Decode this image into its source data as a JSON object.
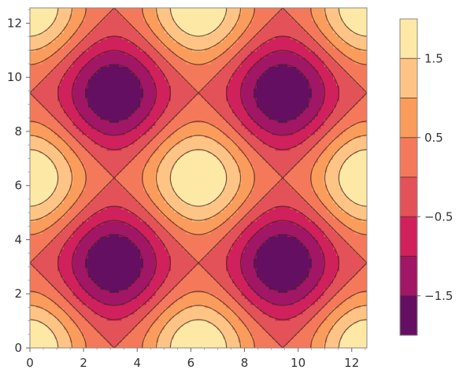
{
  "chart_data": {
    "type": "contour",
    "function": "cos(x) + cos(y)",
    "xlim": [
      0,
      12.566
    ],
    "ylim": [
      0,
      12.566
    ],
    "xticks": [
      0,
      2,
      4,
      6,
      8,
      10,
      12
    ],
    "yticks": [
      0,
      2,
      4,
      6,
      8,
      10,
      12
    ],
    "contour_levels": [
      -1.5,
      -1.0,
      -0.5,
      0.0,
      0.5,
      1.0,
      1.5
    ],
    "color_bands": [
      {
        "range": [
          -2.0,
          -1.5
        ],
        "color": "#650f63"
      },
      {
        "range": [
          -1.5,
          -1.0
        ],
        "color": "#a11665"
      },
      {
        "range": [
          -1.0,
          -0.5
        ],
        "color": "#d0215c"
      },
      {
        "range": [
          -0.5,
          0.0
        ],
        "color": "#e35258"
      },
      {
        "range": [
          0.0,
          0.5
        ],
        "color": "#f4795b"
      },
      {
        "range": [
          0.5,
          1.0
        ],
        "color": "#fa9c5b"
      },
      {
        "range": [
          1.0,
          1.5
        ],
        "color": "#fec486"
      },
      {
        "range": [
          1.5,
          2.0
        ],
        "color": "#fde8a6"
      }
    ],
    "legend": {
      "position": "right",
      "range": [
        -2.0,
        2.0
      ],
      "tick_labels": [
        "1.5",
        "0.5",
        "−0.5",
        "−1.5"
      ],
      "tick_values": [
        1.5,
        0.5,
        -0.5,
        -1.5
      ]
    },
    "frame": true,
    "grid": false
  }
}
